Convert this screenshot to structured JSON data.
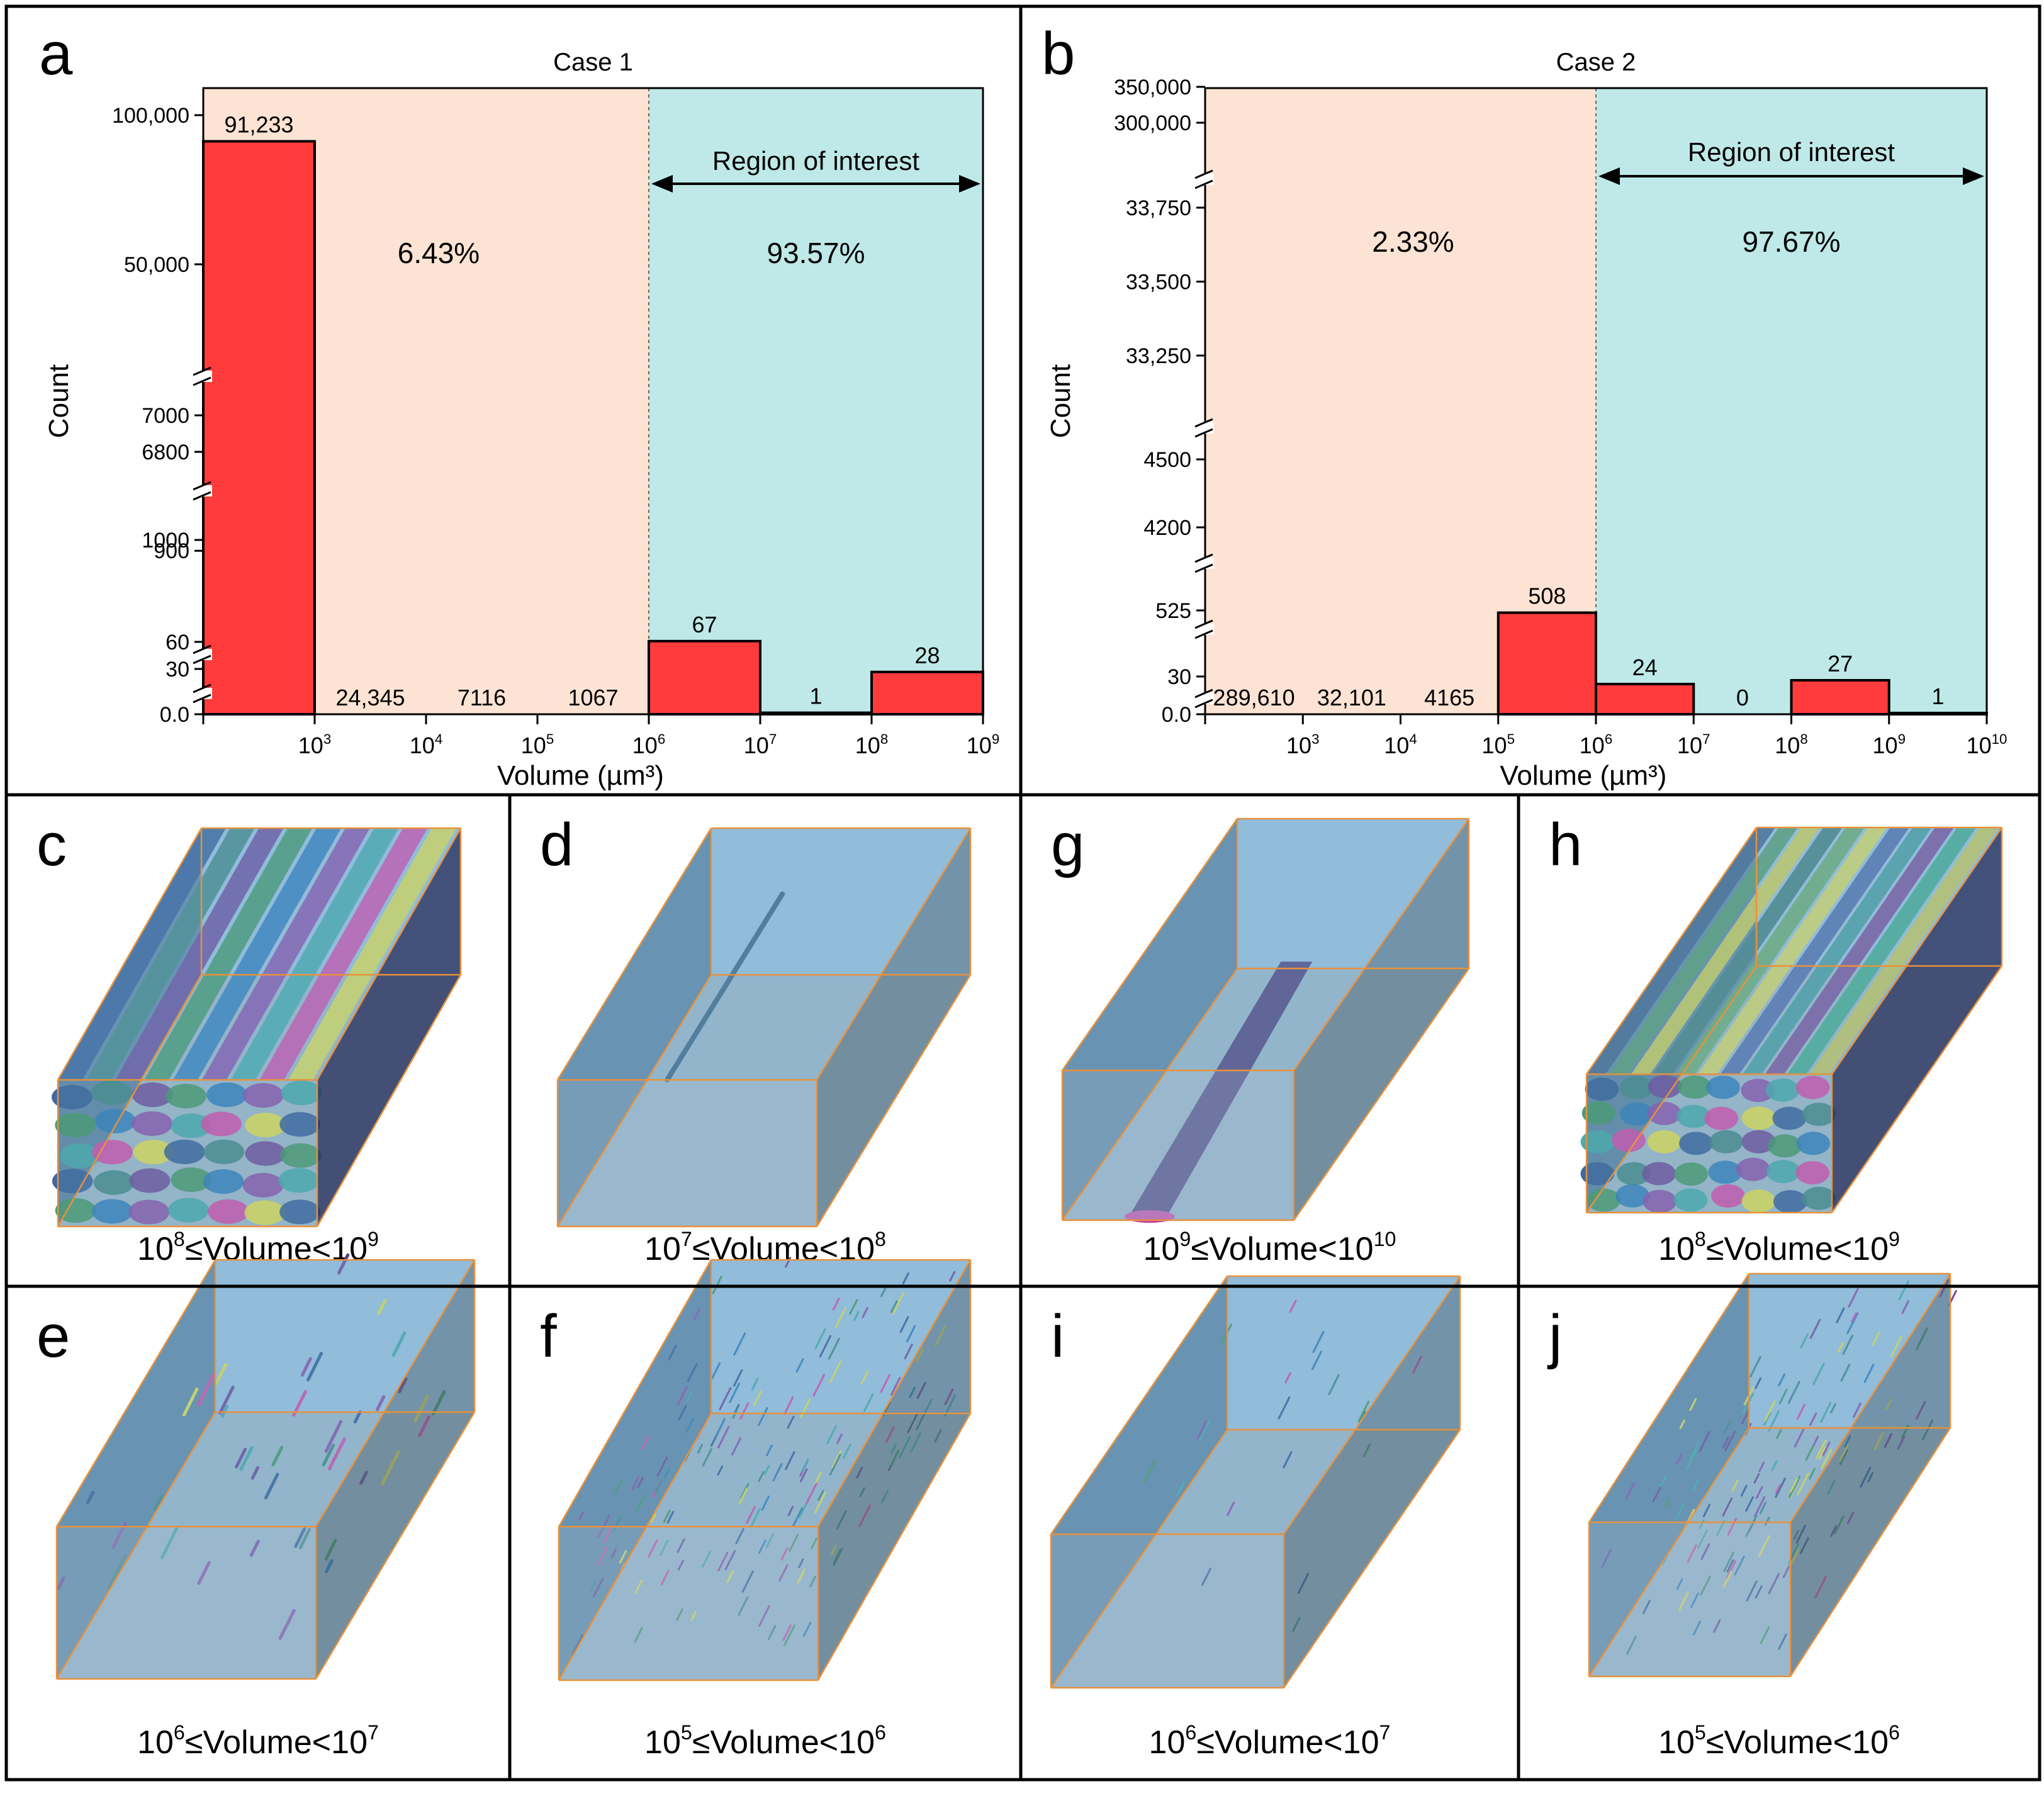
{
  "chart_data": [
    {
      "panel": "a",
      "type": "bar",
      "title": "Case 1",
      "xlabel": "Volume (µm³)",
      "ylabel": "Count",
      "x_ticks": [
        "10^3",
        "10^4",
        "10^5",
        "10^6",
        "10^7",
        "10^8",
        "10^9"
      ],
      "y_ticks": [
        "100,000",
        "50,000",
        "7000",
        "6800",
        "1000",
        "900",
        "60",
        "30",
        "0.0"
      ],
      "bins": [
        "<10^3",
        "10^3-10^4",
        "10^4-10^5",
        "10^5-10^6",
        "10^6-10^7",
        "10^7-10^8",
        "10^8-10^9"
      ],
      "values": [
        91233,
        24345,
        7116,
        1067,
        67,
        1,
        28
      ],
      "value_labels": [
        "91,233",
        "24,345",
        "7116",
        "1067",
        "67",
        "1",
        "28"
      ],
      "regions": [
        {
          "percent": "6.43%",
          "color": "#fce3d3"
        },
        {
          "label": "Region of interest",
          "percent": "93.57%",
          "color": "#bfe9e9"
        }
      ],
      "bar_color": "#ff3b3b",
      "y_axis_breaks": true
    },
    {
      "panel": "b",
      "type": "bar",
      "title": "Case 2",
      "xlabel": "Volume (µm³)",
      "ylabel": "Count",
      "x_ticks": [
        "10^3",
        "10^4",
        "10^5",
        "10^6",
        "10^7",
        "10^8",
        "10^9",
        "10^10"
      ],
      "y_ticks": [
        "350,000",
        "300,000",
        "33,750",
        "33,500",
        "33,250",
        "4500",
        "4200",
        "525",
        "30",
        "0.0"
      ],
      "bins": [
        "<10^3",
        "10^3-10^4",
        "10^4-10^5",
        "10^5-10^6",
        "10^6-10^7",
        "10^7-10^8",
        "10^8-10^9",
        "10^9-10^10"
      ],
      "values": [
        289610,
        32101,
        4165,
        508,
        24,
        0,
        27,
        1
      ],
      "value_labels": [
        "289,610",
        "32,101",
        "4165",
        "508",
        "24",
        "0",
        "27",
        "1"
      ],
      "regions": [
        {
          "percent": "2.33%",
          "color": "#fce3d3"
        },
        {
          "label": "Region of interest",
          "percent": "97.67%",
          "color": "#bfe9e9"
        }
      ],
      "bar_color": "#ff3b3b",
      "y_axis_breaks": true
    }
  ],
  "renders": [
    {
      "letter": "c",
      "caption": "10^8≤Volume<10^9"
    },
    {
      "letter": "d",
      "caption": "10^7≤Volume<10^8"
    },
    {
      "letter": "g",
      "caption": "10^9≤Volume<10^10"
    },
    {
      "letter": "h",
      "caption": "10^8≤Volume<10^9"
    },
    {
      "letter": "e",
      "caption": "10^6≤Volume<10^7"
    },
    {
      "letter": "f",
      "caption": "10^5≤Volume<10^6"
    },
    {
      "letter": "i",
      "caption": "10^6≤Volume<10^7"
    },
    {
      "letter": "j",
      "caption": "10^5≤Volume<10^6"
    }
  ],
  "colors": {
    "bar": "#ff3b3b",
    "left_region": "#fce3d3",
    "right_region": "#bfe9e9",
    "box_edge": "#e8913c",
    "box_front": "#9bbbd0",
    "box_top": "#8fb7d6",
    "box_side": "#5f7d92"
  }
}
